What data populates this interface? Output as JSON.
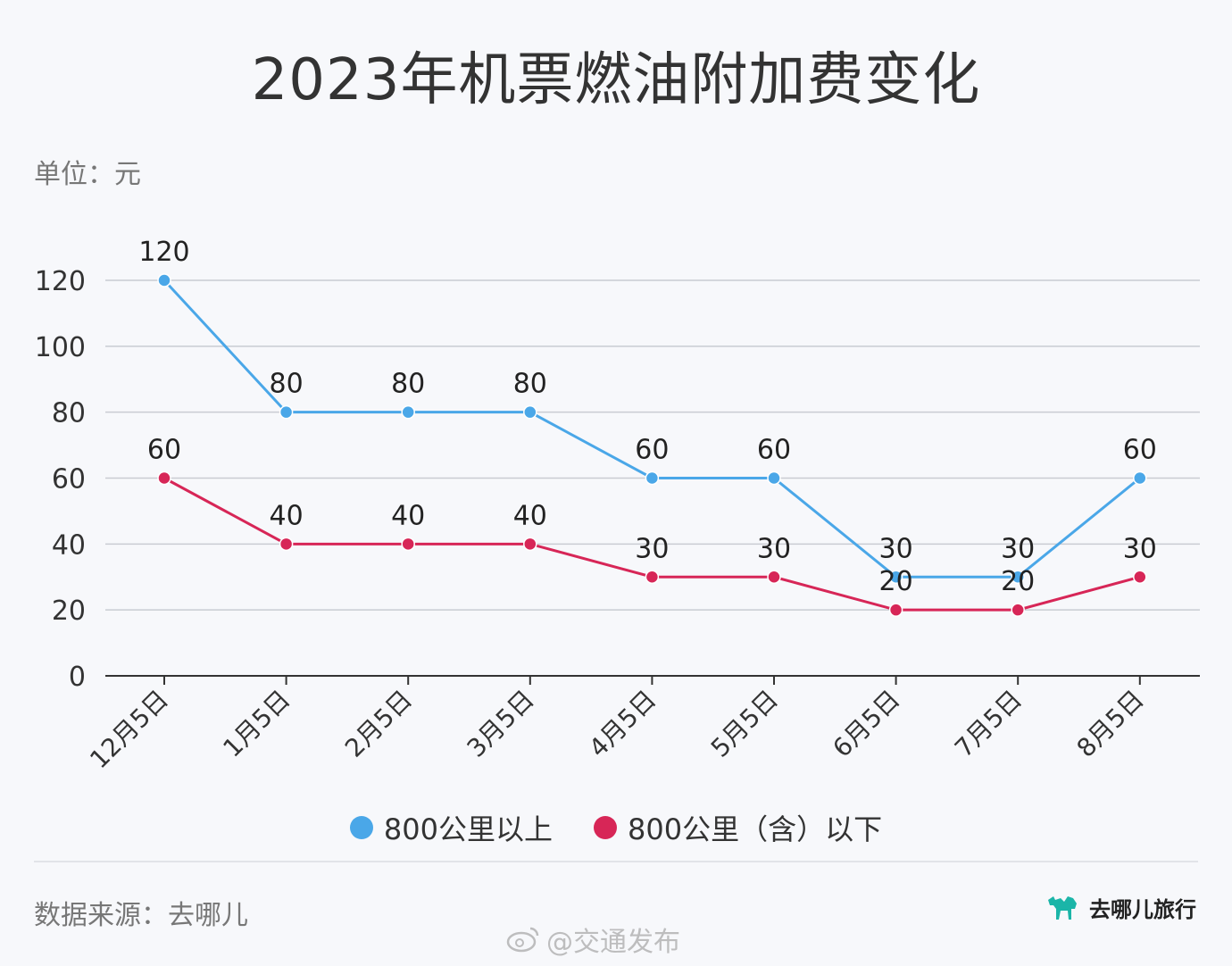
{
  "title": "2023年机票燃油附加费变化",
  "unit_label": "单位：元",
  "source": "数据来源：去哪儿",
  "logo_text": "去哪儿旅行",
  "watermark": "@交通发布",
  "colors": {
    "series_long": "#4aa7e8",
    "series_short": "#d72657",
    "grid": "#c9ccd2",
    "axis": "#333333"
  },
  "chart_data": {
    "type": "line",
    "categories": [
      "12月5日",
      "1月5日",
      "2月5日",
      "3月5日",
      "4月5日",
      "5月5日",
      "6月5日",
      "7月5日",
      "8月5日"
    ],
    "ylim": [
      0,
      120
    ],
    "yticks": [
      0,
      20,
      40,
      60,
      80,
      100,
      120
    ],
    "grid": true,
    "legend_position": "bottom",
    "series": [
      {
        "name": "800公里以上",
        "values": [
          120,
          80,
          80,
          80,
          60,
          60,
          30,
          30,
          60
        ]
      },
      {
        "name": "800公里（含）以下",
        "values": [
          60,
          40,
          40,
          40,
          30,
          30,
          20,
          20,
          30
        ]
      }
    ]
  }
}
